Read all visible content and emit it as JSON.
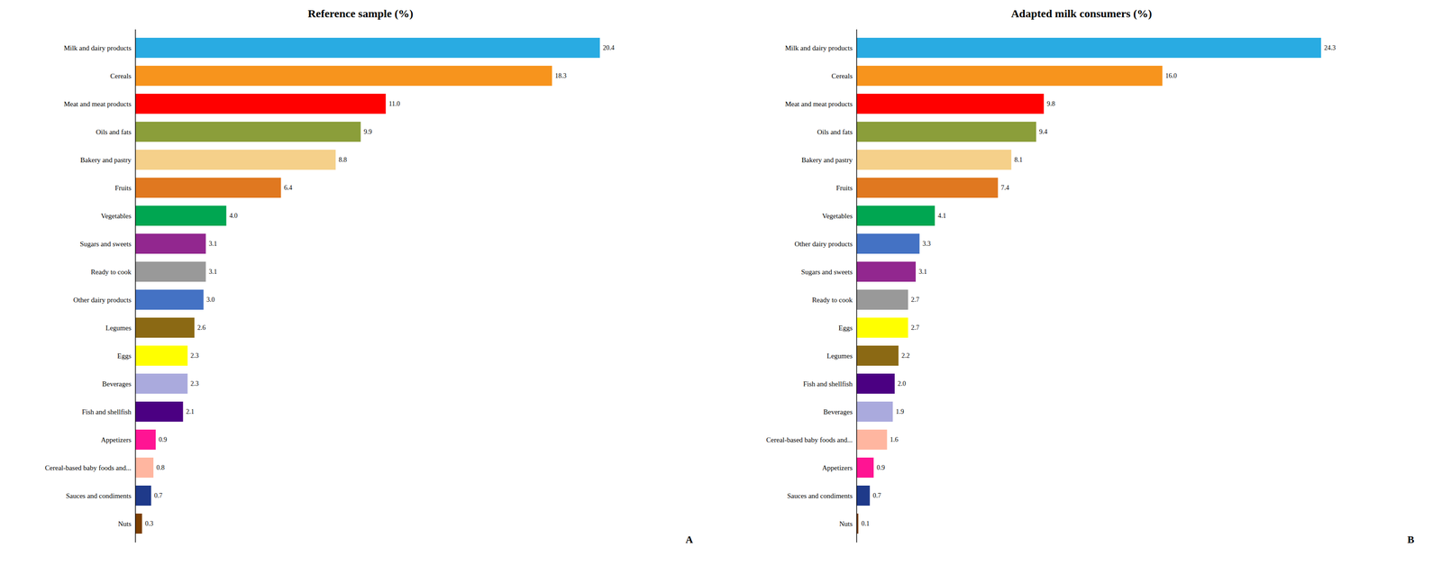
{
  "chart_data": [
    {
      "type": "bar",
      "orientation": "horizontal",
      "title": "Reference sample (%)",
      "annotations": [
        "A"
      ],
      "categories": [
        "Milk and dairy products",
        "Cereals",
        "Meat and meat products",
        "Oils and fats",
        "Bakery and pastry",
        "Fruits",
        "Vegetables",
        "Sugars and sweets",
        "Ready to cook",
        "Other dairy products",
        "Legumes",
        "Eggs",
        "Beverages",
        "Fish and shellfish",
        "Appetizers",
        "Cereal-based baby foods and...",
        "Sauces and condiments",
        "Nuts"
      ],
      "values": [
        20.4,
        18.3,
        11.0,
        9.9,
        8.8,
        6.4,
        4.0,
        3.1,
        3.1,
        3.0,
        2.6,
        2.3,
        2.3,
        2.1,
        0.9,
        0.8,
        0.7,
        0.3
      ],
      "value_labels": [
        "20.4",
        "18.3",
        "11.0",
        "9.9",
        "8.8",
        "6.4",
        "4.0",
        "3.1",
        "3.1",
        "3.0",
        "2.6",
        "2.3",
        "2.3",
        "2.1",
        "0.9",
        "0.8",
        "0.7",
        "0.3"
      ],
      "colors": [
        "#29ABE2",
        "#F7941D",
        "#FF0000",
        "#8B9E3A",
        "#F5D08A",
        "#E07820",
        "#00A651",
        "#92278F",
        "#999999",
        "#4472C4",
        "#8B6914",
        "#FFFF00",
        "#AAAADD",
        "#4B0082",
        "#FF1493",
        "#FFB6A0",
        "#1F3A8A",
        "#7B3F00"
      ],
      "xlim": [
        0,
        24.48
      ],
      "data_labels": true,
      "tick_labels": "y",
      "grid": false
    },
    {
      "type": "bar",
      "orientation": "horizontal",
      "title": "Adapted milk consumers (%)",
      "annotations": [
        "B"
      ],
      "categories": [
        "Milk and dairy products",
        "Cereals",
        "Meat and meat products",
        "Oils and fats",
        "Bakery and pastry",
        "Fruits",
        "Vegetables",
        "Other dairy products",
        "Sugars and sweets",
        "Ready to cook",
        "Eggs",
        "Legumes",
        "Fish and shellfish",
        "Beverages",
        "Cereal-based baby foods and...",
        "Appetizers",
        "Sauces and condiments",
        "Nuts"
      ],
      "values": [
        24.3,
        16.0,
        9.8,
        9.4,
        8.1,
        7.4,
        4.1,
        3.3,
        3.1,
        2.7,
        2.7,
        2.2,
        2.0,
        1.9,
        1.6,
        0.9,
        0.7,
        0.1
      ],
      "value_labels": [
        "24.3",
        "16.0",
        "9.8",
        "9.4",
        "8.1",
        "7.4",
        "4.1",
        "3.3",
        "3.1",
        "2.7",
        "2.7",
        "2.2",
        "2.0",
        "1.9",
        "1.6",
        "0.9",
        "0.7",
        "0.1"
      ],
      "colors": [
        "#29ABE2",
        "#F7941D",
        "#FF0000",
        "#8B9E3A",
        "#F5D08A",
        "#E07820",
        "#00A651",
        "#4472C4",
        "#92278F",
        "#999999",
        "#FFFF00",
        "#8B6914",
        "#4B0082",
        "#AAAADD",
        "#FFB6A0",
        "#FF1493",
        "#1F3A8A",
        "#7B3F00"
      ],
      "xlim": [
        0,
        29.16
      ],
      "data_labels": true,
      "tick_labels": "y",
      "grid": false
    }
  ]
}
